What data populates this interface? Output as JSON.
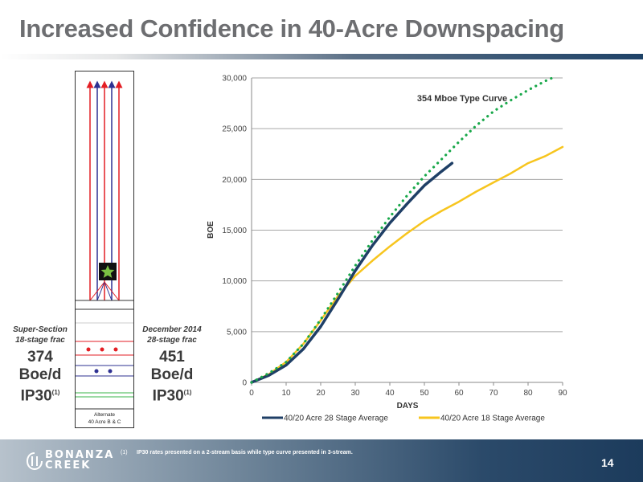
{
  "slide": {
    "title": "Increased Confidence in 40-Acre Downspacing",
    "page_number": "14"
  },
  "left_stat": {
    "label_line1": "Super-Section",
    "label_line2": "18-stage frac",
    "value_line1": "374",
    "value_line2": "Boe/d",
    "value_line3": "IP30",
    "superscript": "(1)"
  },
  "right_stat": {
    "label_line1": "December 2014",
    "label_line2": "28-stage frac",
    "value_line1": "451",
    "value_line2": "Boe/d",
    "value_line3": "IP30",
    "superscript": "(1)"
  },
  "diagram": {
    "caption_line1": "Alternate",
    "caption_line2": "40 Acre B & C",
    "colors": {
      "red": "#e31e24",
      "blue": "#2e3192",
      "green": "#39b54a",
      "star": "#7ac143"
    }
  },
  "footer": {
    "logo_line1": "BONANZA",
    "logo_line2": "CREEK",
    "footnote_marker": "(1)",
    "footnote_text": "IP30 rates presented on a 2-stream basis while type curve presented in 3-stream."
  },
  "chart_data": {
    "type": "line",
    "xlabel": "DAYS",
    "ylabel": "BOE",
    "xlim": [
      0,
      90
    ],
    "ylim": [
      0,
      30000
    ],
    "x_ticks": [
      "0",
      "10",
      "20",
      "30",
      "40",
      "50",
      "60",
      "70",
      "80",
      "90"
    ],
    "y_ticks": [
      "0",
      "5,000",
      "10,000",
      "15,000",
      "20,000",
      "25,000",
      "30,000"
    ],
    "grid": "horizontal",
    "legend_position": "bottom",
    "annotation": "354 Mboe Type Curve",
    "series": [
      {
        "name": "40/20 Acre 28 Stage Average",
        "color": "#1f3f66",
        "style": "solid",
        "x": [
          0,
          5,
          10,
          15,
          20,
          25,
          30,
          35,
          40,
          45,
          50,
          55,
          58
        ],
        "y": [
          0,
          700,
          1700,
          3300,
          5500,
          8200,
          11000,
          13500,
          15700,
          17600,
          19400,
          20800,
          21600
        ]
      },
      {
        "name": "40/20 Acre 18 Stage Average",
        "color": "#f7c51e",
        "style": "solid",
        "x": [
          0,
          5,
          10,
          15,
          20,
          25,
          30,
          35,
          40,
          45,
          50,
          55,
          60,
          65,
          70,
          75,
          80,
          85,
          90
        ],
        "y": [
          0,
          800,
          2000,
          3800,
          6100,
          8500,
          10500,
          12000,
          13400,
          14700,
          15900,
          16900,
          17800,
          18800,
          19700,
          20600,
          21600,
          22300,
          23200
        ]
      },
      {
        "color": "#19a84a",
        "style": "dotted",
        "x": [
          0,
          5,
          10,
          15,
          20,
          25,
          30,
          35,
          40,
          45,
          50,
          55,
          60,
          65,
          70,
          75,
          80,
          85,
          87
        ],
        "y": [
          0,
          900,
          2000,
          3800,
          6200,
          8800,
          11500,
          14000,
          16300,
          18400,
          20300,
          22000,
          23700,
          25300,
          26700,
          27800,
          28800,
          29700,
          30000
        ]
      }
    ]
  }
}
